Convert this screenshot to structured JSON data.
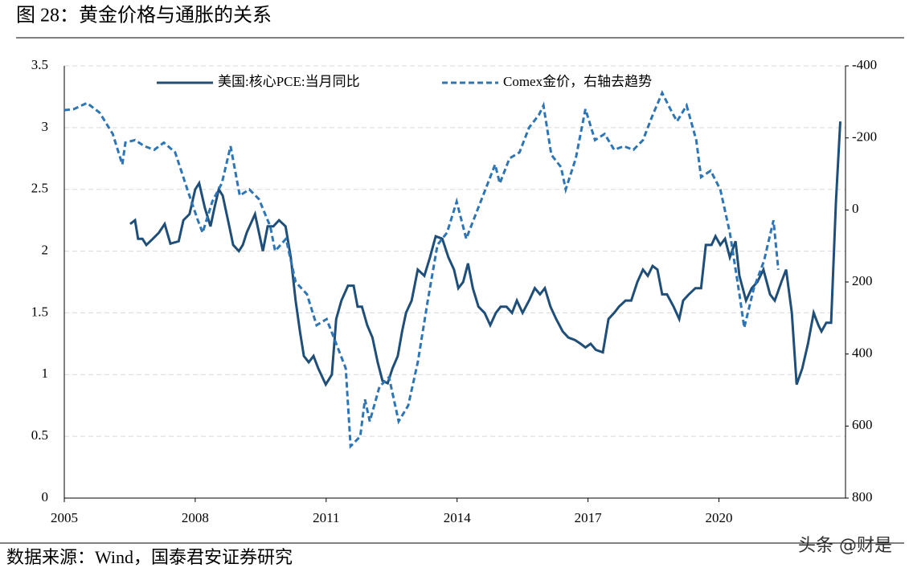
{
  "title": "图 28：黄金价格与通胀的关系",
  "source": "数据来源：Wind，国泰君安证券研究",
  "watermark": "头条 @财是",
  "chart_data": {
    "type": "line",
    "xlim": [
      2005,
      2022.9
    ],
    "xticks": [
      2005,
      2008,
      2011,
      2014,
      2017,
      2020
    ],
    "ylim": [
      0,
      3.5
    ],
    "yticks": [
      0,
      0.5,
      1,
      1.5,
      2,
      2.5,
      3,
      3.5
    ],
    "y2lim": [
      800,
      -400
    ],
    "y2ticks": [
      800,
      600,
      400,
      200,
      0,
      -200,
      -400
    ],
    "grid": true,
    "legend": "top",
    "series": [
      {
        "name": "美国:核心PCE:当月同比",
        "color": "#1f4e79",
        "dash": false,
        "x": [
          2006.51,
          2006.62,
          2006.69,
          2006.79,
          2006.88,
          2007.03,
          2007.17,
          2007.3,
          2007.43,
          2007.62,
          2007.73,
          2007.87,
          2008.0,
          2008.09,
          2008.22,
          2008.35,
          2008.44,
          2008.54,
          2008.63,
          2008.78,
          2008.87,
          2009.0,
          2009.09,
          2009.18,
          2009.37,
          2009.46,
          2009.55,
          2009.66,
          2009.79,
          2009.92,
          2010.07,
          2010.19,
          2010.3,
          2010.4,
          2010.49,
          2010.6,
          2010.71,
          2010.82,
          2010.99,
          2011.13,
          2011.23,
          2011.35,
          2011.5,
          2011.63,
          2011.72,
          2011.82,
          2011.94,
          2012.06,
          2012.18,
          2012.29,
          2012.41,
          2012.52,
          2012.64,
          2012.74,
          2012.83,
          2012.96,
          2013.1,
          2013.25,
          2013.38,
          2013.51,
          2013.66,
          2013.8,
          2013.93,
          2014.03,
          2014.14,
          2014.25,
          2014.36,
          2014.49,
          2014.63,
          2014.76,
          2014.89,
          2015.0,
          2015.13,
          2015.26,
          2015.37,
          2015.5,
          2015.65,
          2015.78,
          2015.9,
          2016.01,
          2016.14,
          2016.27,
          2016.42,
          2016.55,
          2016.7,
          2016.83,
          2016.94,
          2017.06,
          2017.18,
          2017.34,
          2017.47,
          2017.6,
          2017.71,
          2017.86,
          2017.99,
          2018.13,
          2018.26,
          2018.37,
          2018.48,
          2018.59,
          2018.7,
          2018.81,
          2018.96,
          2019.09,
          2019.18,
          2019.31,
          2019.46,
          2019.59,
          2019.7,
          2019.83,
          2019.92,
          2020.03,
          2020.14,
          2020.25,
          2020.38,
          2020.47,
          2020.62,
          2020.75,
          2020.88,
          2021.02,
          2021.17,
          2021.28,
          2021.43,
          2021.54,
          2021.67,
          2021.78,
          2021.91,
          2022.04,
          2022.17,
          2022.28,
          2022.35,
          2022.46,
          2022.57,
          2022.68,
          2022.78
        ],
        "values": [
          2.22,
          2.25,
          2.1,
          2.1,
          2.05,
          2.1,
          2.15,
          2.22,
          2.06,
          2.08,
          2.25,
          2.3,
          2.5,
          2.55,
          2.35,
          2.2,
          2.35,
          2.5,
          2.45,
          2.2,
          2.05,
          2.0,
          2.05,
          2.15,
          2.3,
          2.15,
          2.0,
          2.2,
          2.2,
          2.25,
          2.2,
          1.95,
          1.6,
          1.35,
          1.15,
          1.1,
          1.15,
          1.05,
          0.92,
          1.0,
          1.45,
          1.6,
          1.72,
          1.72,
          1.55,
          1.55,
          1.4,
          1.3,
          1.1,
          0.95,
          0.93,
          1.05,
          1.15,
          1.35,
          1.5,
          1.6,
          1.85,
          1.8,
          1.95,
          2.12,
          2.1,
          1.95,
          1.85,
          1.7,
          1.75,
          1.9,
          1.7,
          1.55,
          1.5,
          1.4,
          1.5,
          1.55,
          1.55,
          1.5,
          1.6,
          1.5,
          1.6,
          1.7,
          1.65,
          1.7,
          1.55,
          1.45,
          1.35,
          1.3,
          1.28,
          1.25,
          1.22,
          1.25,
          1.2,
          1.18,
          1.45,
          1.5,
          1.55,
          1.6,
          1.6,
          1.75,
          1.85,
          1.8,
          1.88,
          1.85,
          1.65,
          1.65,
          1.55,
          1.45,
          1.6,
          1.65,
          1.7,
          1.7,
          2.05,
          2.05,
          2.12,
          2.05,
          2.1,
          1.95,
          2.08,
          1.8,
          1.6,
          1.7,
          1.75,
          1.85,
          1.65,
          1.6,
          1.75,
          1.85,
          1.5,
          0.92,
          1.05,
          1.25,
          1.5,
          1.4,
          1.35,
          1.42,
          1.42,
          2.4,
          3.05
        ]
      },
      {
        "name": "Comex金价，右轴去趋势",
        "color": "#2e75b6",
        "dash": true,
        "axis": "y2",
        "x": [
          2005.0,
          2005.22,
          2005.52,
          2005.81,
          2006.11,
          2006.33,
          2006.4,
          2006.62,
          2006.84,
          2007.06,
          2007.28,
          2007.54,
          2007.82,
          2008.06,
          2008.17,
          2008.39,
          2008.61,
          2008.81,
          2009.02,
          2009.24,
          2009.46,
          2009.72,
          2009.83,
          2010.08,
          2010.3,
          2010.56,
          2010.78,
          2011.01,
          2011.23,
          2011.45,
          2011.56,
          2011.78,
          2011.89,
          2012.0,
          2012.22,
          2012.44,
          2012.66,
          2012.88,
          2013.1,
          2013.33,
          2013.55,
          2013.77,
          2013.99,
          2014.21,
          2014.43,
          2014.65,
          2014.87,
          2014.98,
          2015.2,
          2015.43,
          2015.65,
          2015.87,
          2015.98,
          2016.16,
          2016.38,
          2016.49,
          2016.72,
          2016.94,
          2017.16,
          2017.38,
          2017.6,
          2017.82,
          2018.04,
          2018.26,
          2018.48,
          2018.7,
          2018.93,
          2019.04,
          2019.26,
          2019.48,
          2019.59,
          2019.81,
          2020.03,
          2020.25,
          2020.47,
          2020.58,
          2020.8,
          2021.03,
          2021.25,
          2021.36
        ],
        "values": [
          -277,
          -280,
          -297,
          -270,
          -211,
          -126,
          -187,
          -194,
          -177,
          -167,
          -187,
          -160,
          -57,
          29,
          63,
          -23,
          -74,
          -177,
          -40,
          -57,
          -30,
          46,
          114,
          80,
          200,
          234,
          320,
          303,
          371,
          440,
          656,
          629,
          526,
          587,
          491,
          464,
          587,
          543,
          423,
          251,
          97,
          63,
          -23,
          80,
          11,
          -57,
          -126,
          -74,
          -143,
          -160,
          -229,
          -263,
          -290,
          -153,
          -119,
          -57,
          -143,
          -280,
          -194,
          -211,
          -167,
          -177,
          -167,
          -194,
          -263,
          -325,
          -270,
          -246,
          -290,
          -194,
          -91,
          -109,
          -57,
          63,
          234,
          327,
          217,
          142,
          29,
          166
        ]
      }
    ]
  }
}
